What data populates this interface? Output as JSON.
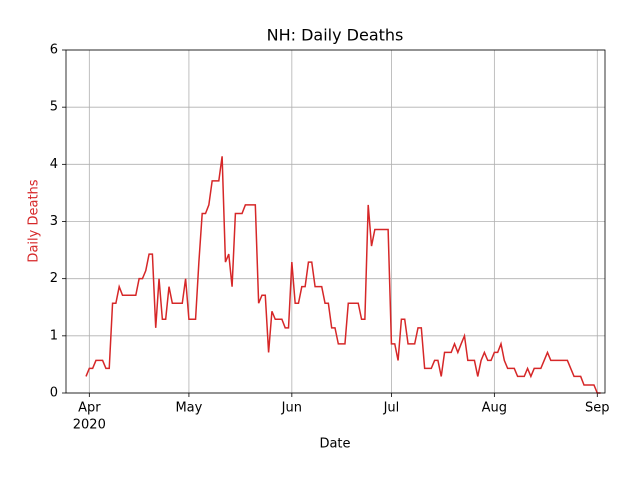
{
  "chart_data": {
    "type": "line",
    "title": "NH: Daily Deaths",
    "x_label": "Date",
    "y_label": "Daily Deaths",
    "y_label_color": "#d62728",
    "year_label": "2020",
    "categories": [
      null,
      "Apr",
      null,
      null,
      null,
      null,
      null,
      null,
      null,
      null,
      null,
      null,
      null,
      null,
      null,
      null,
      null,
      null,
      null,
      null,
      null,
      null,
      null,
      null,
      null,
      null,
      null,
      null,
      null,
      null,
      null,
      "May",
      null,
      null,
      null,
      null,
      null,
      null,
      null,
      null,
      null,
      null,
      null,
      null,
      null,
      null,
      null,
      null,
      null,
      null,
      null,
      null,
      null,
      null,
      null,
      null,
      null,
      null,
      null,
      null,
      null,
      null,
      "Jun",
      null,
      null,
      null,
      null,
      null,
      null,
      null,
      null,
      null,
      null,
      null,
      null,
      null,
      null,
      null,
      null,
      null,
      null,
      null,
      null,
      null,
      null,
      null,
      null,
      null,
      null,
      null,
      null,
      null,
      "Jul",
      null,
      null,
      null,
      null,
      null,
      null,
      null,
      null,
      null,
      null,
      null,
      null,
      null,
      null,
      null,
      null,
      null,
      null,
      null,
      null,
      null,
      null,
      null,
      null,
      null,
      null,
      null,
      null,
      null,
      null,
      "Aug",
      null,
      null,
      null,
      null,
      null,
      null,
      null,
      null,
      null,
      null,
      null,
      null,
      null,
      null,
      null,
      null,
      null,
      null,
      null,
      null,
      null,
      null,
      null,
      null,
      null,
      null,
      null,
      null,
      null,
      null,
      "Sep",
      null
    ],
    "series": [
      {
        "name": "Daily Deaths",
        "color": "#d62728",
        "values": [
          0.29,
          0.43,
          0.43,
          0.57,
          0.57,
          0.57,
          0.43,
          0.43,
          1.57,
          1.57,
          1.86,
          1.71,
          1.71,
          1.71,
          1.71,
          1.71,
          2.0,
          2.0,
          2.14,
          2.43,
          2.43,
          1.14,
          2.0,
          1.29,
          1.29,
          1.86,
          1.57,
          1.57,
          1.57,
          1.57,
          2.0,
          1.29,
          1.29,
          1.29,
          2.29,
          3.14,
          3.14,
          3.29,
          3.71,
          3.71,
          3.71,
          4.14,
          2.29,
          2.43,
          1.86,
          3.14,
          3.14,
          3.14,
          3.29,
          3.29,
          3.29,
          3.29,
          1.57,
          1.71,
          1.71,
          0.71,
          1.43,
          1.29,
          1.29,
          1.29,
          1.14,
          1.14,
          2.29,
          1.57,
          1.57,
          1.86,
          1.86,
          2.29,
          2.29,
          1.86,
          1.86,
          1.86,
          1.57,
          1.57,
          1.14,
          1.14,
          0.86,
          0.86,
          0.86,
          1.57,
          1.57,
          1.57,
          1.57,
          1.29,
          1.29,
          3.29,
          2.57,
          2.86,
          2.86,
          2.86,
          2.86,
          2.86,
          0.86,
          0.86,
          0.57,
          1.29,
          1.29,
          0.86,
          0.86,
          0.86,
          1.14,
          1.14,
          0.43,
          0.43,
          0.43,
          0.57,
          0.57,
          0.29,
          0.71,
          0.71,
          0.71,
          0.86,
          0.71,
          0.86,
          1.0,
          0.57,
          0.57,
          0.57,
          0.29,
          0.57,
          0.71,
          0.57,
          0.57,
          0.71,
          0.71,
          0.86,
          0.57,
          0.43,
          0.43,
          0.43,
          0.29,
          0.29,
          0.29,
          0.43,
          0.29,
          0.43,
          0.43,
          0.43,
          0.57,
          0.71,
          0.57,
          0.57,
          0.57,
          0.57,
          0.57,
          0.57,
          0.43,
          0.29,
          0.29,
          0.29,
          0.14,
          0.14,
          0.14,
          0.14,
          0.0,
          0.0
        ]
      }
    ],
    "ylim": [
      0,
      6
    ],
    "yticks": [
      0,
      1,
      2,
      3,
      4,
      5,
      6
    ],
    "grid": true
  }
}
